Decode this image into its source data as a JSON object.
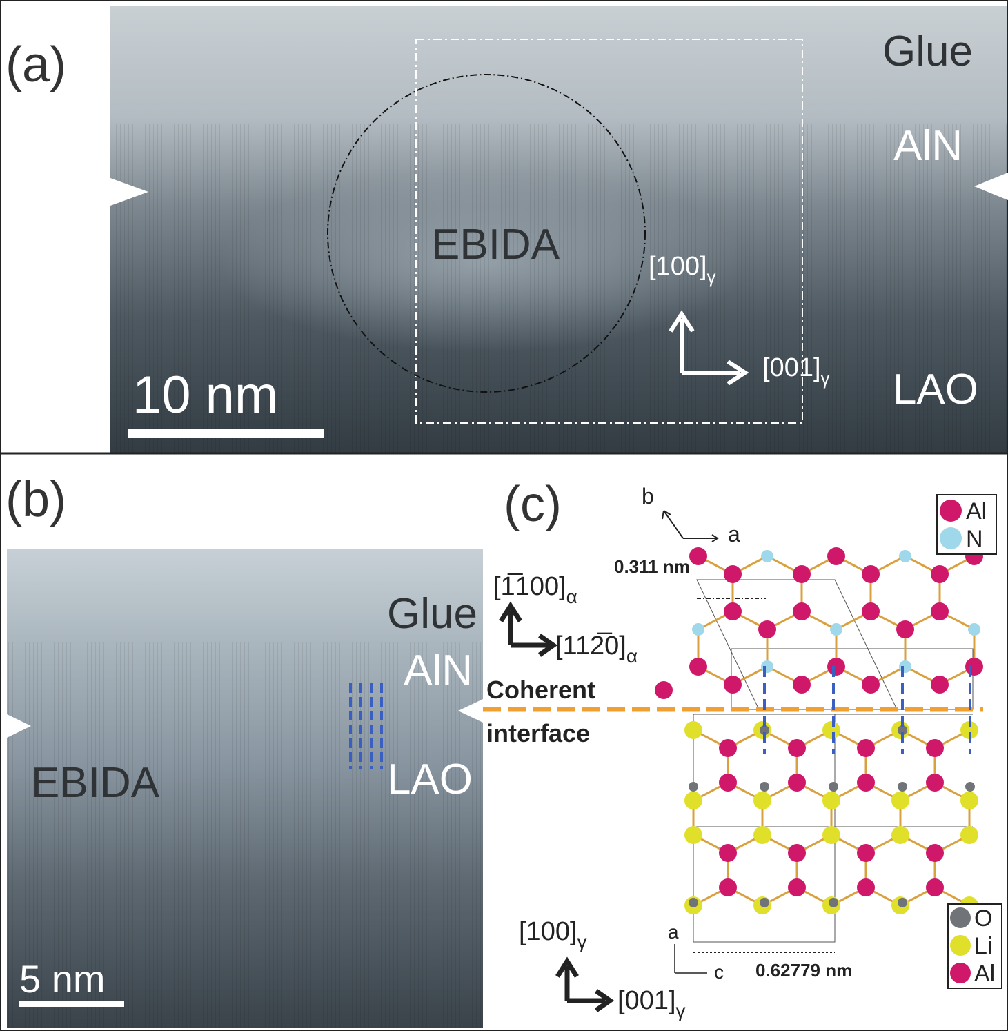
{
  "panel_a": {
    "label": "(a)",
    "glue": "Glue",
    "aln": "AlN",
    "ebida": "EBIDA",
    "lao": "LAO",
    "scale": "10 nm",
    "axis_vertical": {
      "text": "[100]",
      "sub": "γ"
    },
    "axis_horizontal": {
      "text": "[001]",
      "sub": "γ"
    }
  },
  "panel_b": {
    "label": "(b)",
    "glue": "Glue",
    "aln": "AlN",
    "ebida": "EBIDA",
    "lao": "LAO",
    "scale": "5 nm"
  },
  "panel_c": {
    "label": "(c)",
    "top_axes": {
      "b": "b",
      "a": "a"
    },
    "aln_spacing": "0.311 nm",
    "aln_dir_vertical": {
      "text": "[1̅100]",
      "sub": "α"
    },
    "aln_dir_horizontal": {
      "text": "[112̅0]",
      "sub": "α"
    },
    "interface": [
      "Coherent",
      "interface"
    ],
    "legend_top": [
      "Al",
      "N"
    ],
    "legend_bottom": [
      "O",
      "Li",
      "Al"
    ],
    "bottom_axes": {
      "a": "a",
      "c": "c"
    },
    "lao_spacing": "0.62779 nm",
    "lao_dir_vertical": {
      "text": "[100]",
      "sub": "γ"
    },
    "lao_dir_horizontal": {
      "text": "[001]",
      "sub": "γ"
    }
  }
}
